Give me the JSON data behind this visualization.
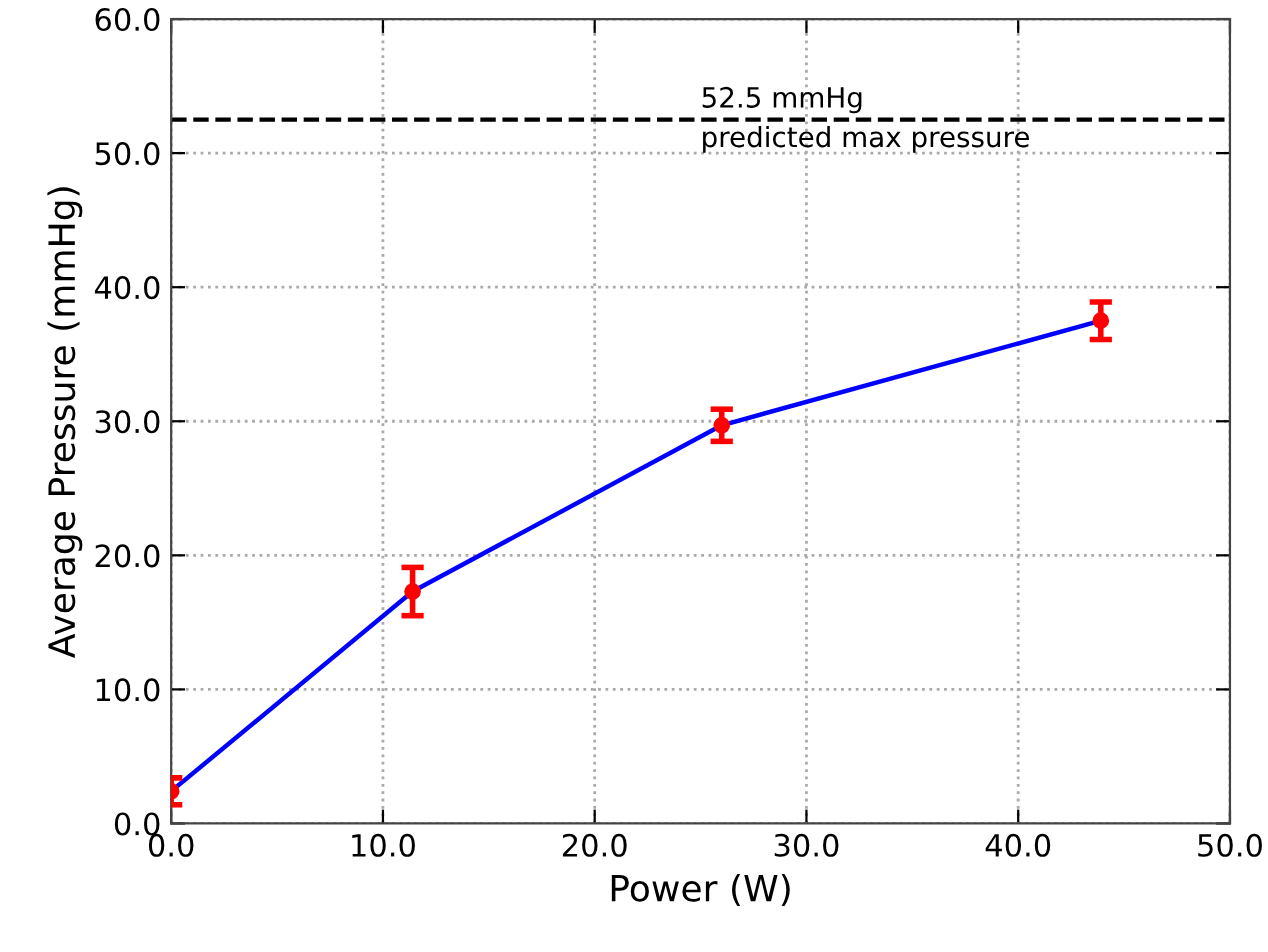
{
  "chart_data": {
    "type": "line",
    "xlabel": "Power (W)",
    "ylabel": "Average Pressure (mmHg)",
    "x": [
      0.0,
      11.4,
      26.0,
      43.9
    ],
    "series": [
      {
        "color": "#0000ff",
        "values": [
          2.4,
          17.3,
          29.7,
          37.5
        ],
        "errors": [
          1.0,
          1.8,
          1.2,
          1.4
        ],
        "colors": [
          "#ff0000",
          "#ff0000",
          "#ff0000",
          "#ff0000"
        ]
      }
    ],
    "marker": "circle",
    "line_style": "solid",
    "xlim": [
      0,
      50
    ],
    "ylim": [
      0,
      60
    ],
    "xticks": [
      {
        "value": 0,
        "label": "0.0"
      },
      {
        "value": 10,
        "label": "10.0"
      },
      {
        "value": 20,
        "label": "20.0"
      },
      {
        "value": 30,
        "label": "30.0"
      },
      {
        "value": 40,
        "label": "40.0"
      },
      {
        "value": 50,
        "label": "50.0"
      }
    ],
    "yticks": [
      {
        "value": 0,
        "label": "0.0"
      },
      {
        "value": 10,
        "label": "10.0"
      },
      {
        "value": 20,
        "label": "20.0"
      },
      {
        "value": 30,
        "label": "30.0"
      },
      {
        "value": 40,
        "label": "40.0"
      },
      {
        "value": 50,
        "label": "50.0"
      },
      {
        "value": 60,
        "label": "60.0"
      }
    ],
    "ref_lines": [
      {
        "axis": "y",
        "value": 52.5,
        "label": "52.5 mmHg\npredicted max pressure",
        "color": "#000000",
        "line_style": "dashed"
      }
    ],
    "grid": true
  }
}
